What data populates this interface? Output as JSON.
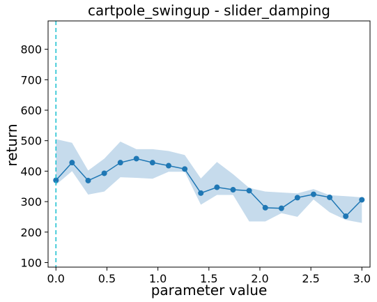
{
  "chart_data": {
    "type": "line",
    "title": "cartpole_swingup - slider_damping",
    "xlabel": "parameter value",
    "ylabel": "return",
    "xlim": [
      -0.077,
      3.08
    ],
    "ylim": [
      85,
      893
    ],
    "xticks": [
      "0.0",
      "0.5",
      "1.0",
      "1.5",
      "2.0",
      "2.5",
      "3.0"
    ],
    "xtick_values": [
      0,
      0.5,
      1.0,
      1.5,
      2.0,
      2.5,
      3.0
    ],
    "yticks": [
      "100",
      "200",
      "300",
      "400",
      "500",
      "600",
      "700",
      "800"
    ],
    "ytick_values": [
      100,
      200,
      300,
      400,
      500,
      600,
      700,
      800
    ],
    "grid": false,
    "reference_line": {
      "x": 0.0,
      "style": "dashed",
      "color": "#17becf"
    },
    "series": [
      {
        "color": "#1f77b4",
        "band_color": "#c6dbec",
        "x": [
          0.0,
          0.158,
          0.316,
          0.474,
          0.632,
          0.789,
          0.947,
          1.105,
          1.263,
          1.421,
          1.579,
          1.737,
          1.895,
          2.053,
          2.211,
          2.368,
          2.526,
          2.684,
          2.842,
          3.0
        ],
        "values": [
          370,
          428,
          369,
          393,
          428,
          441,
          428,
          418,
          407,
          328,
          347,
          339,
          336,
          280,
          278,
          313,
          324,
          314,
          252,
          306
        ],
        "upper": [
          505,
          493,
          402,
          441,
          497,
          472,
          472,
          466,
          453,
          376,
          430,
          390,
          345,
          333,
          330,
          327,
          341,
          321,
          318,
          314
        ],
        "lower": [
          355,
          400,
          323,
          333,
          380,
          378,
          375,
          398,
          398,
          290,
          322,
          322,
          235,
          235,
          262,
          250,
          307,
          265,
          240,
          230
        ]
      }
    ]
  }
}
